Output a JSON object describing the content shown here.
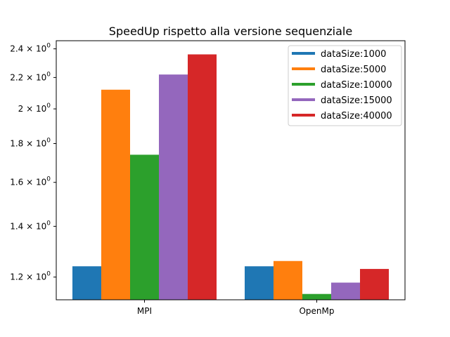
{
  "chart_data": {
    "type": "bar",
    "title": "SpeedUp rispetto alla versione sequenziale",
    "xlabel": "",
    "ylabel": "",
    "categories": [
      "MPI",
      "OpenMp"
    ],
    "y_scale": "log",
    "ylim": [
      1.12,
      2.46
    ],
    "yticks": [
      {
        "value": 1.2,
        "label": "1.2 × 10",
        "exp": "0"
      },
      {
        "value": 1.4,
        "label": "1.4 × 10",
        "exp": "0"
      },
      {
        "value": 1.6,
        "label": "1.6 × 10",
        "exp": "0"
      },
      {
        "value": 1.8,
        "label": "1.8 × 10",
        "exp": "0"
      },
      {
        "value": 2.0,
        "label": "2 × 10",
        "exp": "0"
      },
      {
        "value": 2.2,
        "label": "2.2 × 10",
        "exp": "0"
      },
      {
        "value": 2.4,
        "label": "2.4 × 10",
        "exp": "0"
      }
    ],
    "legend_position": "top-right",
    "grid": false,
    "series": [
      {
        "name": "dataSize:1000",
        "color": "#1f77b4",
        "values": [
          1.24,
          1.24
        ]
      },
      {
        "name": "dataSize:5000",
        "color": "#ff7f0e",
        "values": [
          2.12,
          1.26
        ]
      },
      {
        "name": "dataSize:10000",
        "color": "#2ca02c",
        "values": [
          1.74,
          1.14
        ]
      },
      {
        "name": "dataSize:15000",
        "color": "#9467bd",
        "values": [
          2.22,
          1.18
        ]
      },
      {
        "name": "dataSize:40000",
        "color": "#d62728",
        "values": [
          2.36,
          1.23
        ]
      }
    ]
  }
}
